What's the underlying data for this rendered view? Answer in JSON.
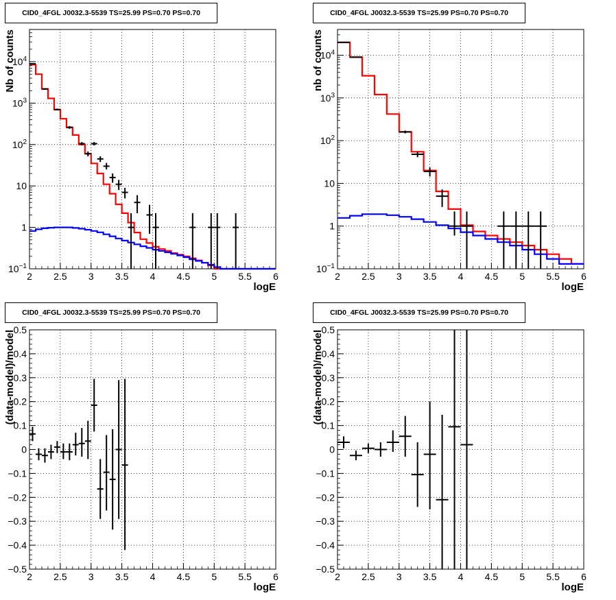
{
  "panels": [
    {
      "title": "CID0_4FGL J0032.3-5539 TS=25.99 PS=0.70 PS=0.70",
      "chart_data": {
        "type": "line",
        "xlabel": "logE",
        "ylabel": "Nb of counts",
        "xlim": [
          2,
          6
        ],
        "ylim": [
          0.1,
          60000
        ],
        "yscale": "log",
        "grid": true,
        "xticks": [
          "2",
          "2.5",
          "3",
          "3.5",
          "4",
          "4.5",
          "5",
          "5.5",
          "6"
        ],
        "yticks": [
          "10⁻¹",
          "1",
          "10",
          "10²",
          "10³",
          "10⁴"
        ],
        "series": [
          {
            "kind": "step",
            "color": "#ff0000",
            "edges": [
              2.0,
              2.1,
              2.2,
              2.3,
              2.4,
              2.5,
              2.6,
              2.7,
              2.8,
              2.9,
              3.0,
              3.1,
              3.2,
              3.3,
              3.4,
              3.5,
              3.6,
              3.7,
              3.8,
              3.9,
              4.0,
              4.1,
              4.2,
              4.3,
              4.4,
              4.5,
              4.6,
              4.7,
              4.8,
              4.9,
              5.0,
              5.1,
              5.2,
              5.3,
              5.4,
              5.5,
              5.6,
              5.7,
              5.8,
              5.9,
              6.0
            ],
            "values": [
              8500,
              5000,
              2200,
              1300,
              700,
              420,
              260,
              170,
              100,
              60,
              35,
              20,
              11,
              6.5,
              3.6,
              2.2,
              1.3,
              0.75,
              0.52,
              0.42,
              0.34,
              0.3,
              0.27,
              0.24,
              0.22,
              0.2,
              0.18,
              0.16,
              0.14,
              0.12,
              0.1,
              0.1,
              0.1,
              0.1,
              0.1,
              0.1,
              0.1,
              0.1,
              0.1,
              0.1
            ]
          },
          {
            "kind": "step",
            "color": "#0000ff",
            "edges": [
              2.0,
              2.1,
              2.2,
              2.3,
              2.4,
              2.5,
              2.6,
              2.7,
              2.8,
              2.9,
              3.0,
              3.1,
              3.2,
              3.3,
              3.4,
              3.5,
              3.6,
              3.7,
              3.8,
              3.9,
              4.0,
              4.1,
              4.2,
              4.3,
              4.4,
              4.5,
              4.6,
              4.7,
              4.8,
              4.9,
              5.0,
              5.1,
              5.2,
              5.3,
              5.4,
              5.5,
              5.6,
              5.7,
              5.8,
              5.9,
              6.0
            ],
            "values": [
              0.82,
              0.9,
              0.95,
              0.98,
              1.0,
              1.0,
              1.0,
              0.97,
              0.93,
              0.88,
              0.82,
              0.76,
              0.68,
              0.61,
              0.54,
              0.48,
              0.43,
              0.39,
              0.35,
              0.32,
              0.29,
              0.27,
              0.25,
              0.23,
              0.21,
              0.19,
              0.17,
              0.155,
              0.14,
              0.125,
              0.11,
              0.1,
              0.1,
              0.1,
              0.1,
              0.1,
              0.1,
              0.1,
              0.1,
              0.1
            ]
          }
        ],
        "points": [
          {
            "x": 2.05,
            "y": 8900,
            "dx": 0.05,
            "lo": 8700,
            "hi": 9100
          },
          {
            "x": 2.25,
            "y": 2200,
            "dx": 0.05,
            "lo": 2100,
            "hi": 2300
          },
          {
            "x": 2.45,
            "y": 700,
            "dx": 0.05,
            "lo": 670,
            "hi": 730
          },
          {
            "x": 2.65,
            "y": 260,
            "dx": 0.05,
            "lo": 240,
            "hi": 280
          },
          {
            "x": 2.85,
            "y": 105,
            "dx": 0.05,
            "lo": 95,
            "hi": 115
          },
          {
            "x": 2.95,
            "y": 60,
            "dx": 0.05,
            "lo": 52,
            "hi": 68
          },
          {
            "x": 3.05,
            "y": 105,
            "dx": 0.05,
            "lo": 95,
            "hi": 115
          },
          {
            "x": 3.15,
            "y": 45,
            "dx": 0.05,
            "lo": 38,
            "hi": 52
          },
          {
            "x": 3.25,
            "y": 30,
            "dx": 0.05,
            "lo": 25,
            "hi": 36
          },
          {
            "x": 3.35,
            "y": 16,
            "dx": 0.05,
            "lo": 12,
            "hi": 20
          },
          {
            "x": 3.45,
            "y": 11,
            "dx": 0.05,
            "lo": 8,
            "hi": 14
          },
          {
            "x": 3.55,
            "y": 7,
            "dx": 0.05,
            "lo": 5,
            "hi": 9
          },
          {
            "x": 3.65,
            "y": 1,
            "dx": 0.05,
            "lo": 0.1,
            "hi": 2.2
          },
          {
            "x": 3.75,
            "y": 4,
            "dx": 0.05,
            "lo": 2.2,
            "hi": 6
          },
          {
            "x": 3.95,
            "y": 2,
            "dx": 0.05,
            "lo": 0.7,
            "hi": 3.5
          },
          {
            "x": 4.05,
            "y": 1,
            "dx": 0.05,
            "lo": 0.1,
            "hi": 2.2
          },
          {
            "x": 4.65,
            "y": 1,
            "dx": 0.05,
            "lo": 0.1,
            "hi": 2.2
          },
          {
            "x": 4.95,
            "y": 1,
            "dx": 0.05,
            "lo": 0.1,
            "hi": 2.2
          },
          {
            "x": 5.05,
            "y": 1,
            "dx": 0.05,
            "lo": 0.1,
            "hi": 2.2
          },
          {
            "x": 5.35,
            "y": 1,
            "dx": 0.05,
            "lo": 0.1,
            "hi": 2.2
          }
        ]
      }
    },
    {
      "title": "CID0_4FGL J0032.3-5539 TS=25.99 PS=0.70 PS=0.70",
      "chart_data": {
        "type": "line",
        "xlabel": "logE",
        "ylabel": "nb of counts",
        "xlim": [
          2,
          6
        ],
        "ylim": [
          0.1,
          40000
        ],
        "yscale": "log",
        "grid": true,
        "xticks": [
          "2",
          "2.5",
          "3",
          "3.5",
          "4",
          "4.5",
          "5",
          "5.5",
          "6"
        ],
        "yticks": [
          "10⁻¹",
          "1",
          "10",
          "10²",
          "10³",
          "10⁴"
        ],
        "series": [
          {
            "kind": "step",
            "color": "#ff0000",
            "edges": [
              2.0,
              2.2,
              2.4,
              2.6,
              2.8,
              3.0,
              3.2,
              3.4,
              3.6,
              3.8,
              4.0,
              4.2,
              4.4,
              4.6,
              4.8,
              5.0,
              5.2,
              5.4,
              5.6,
              5.8,
              6.0
            ],
            "values": [
              20000,
              9000,
              3300,
              1200,
              420,
              160,
              55,
              20,
              6.5,
              2.5,
              1.05,
              0.75,
              0.6,
              0.5,
              0.42,
              0.35,
              0.28,
              0.22,
              0.17,
              0.13
            ]
          },
          {
            "kind": "step",
            "color": "#0000ff",
            "edges": [
              2.0,
              2.2,
              2.4,
              2.6,
              2.8,
              3.0,
              3.2,
              3.4,
              3.6,
              3.8,
              4.0,
              4.2,
              4.4,
              4.6,
              4.8,
              5.0,
              5.2,
              5.4,
              5.6,
              5.8,
              6.0
            ],
            "values": [
              1.55,
              1.75,
              1.9,
              1.9,
              1.8,
              1.65,
              1.45,
              1.25,
              1.05,
              0.88,
              0.72,
              0.6,
              0.5,
              0.42,
              0.35,
              0.28,
              0.22,
              0.17,
              0.13,
              0.13
            ]
          }
        ],
        "points": [
          {
            "x": 2.1,
            "y": 20000,
            "dx": 0.1,
            "lo": 19500,
            "hi": 20500
          },
          {
            "x": 2.3,
            "y": 9000,
            "dx": 0.1,
            "lo": 8800,
            "hi": 9200
          },
          {
            "x": 3.1,
            "y": 160,
            "dx": 0.1,
            "lo": 148,
            "hi": 172
          },
          {
            "x": 3.3,
            "y": 48,
            "dx": 0.1,
            "lo": 41,
            "hi": 55
          },
          {
            "x": 3.5,
            "y": 19,
            "dx": 0.1,
            "lo": 14.5,
            "hi": 23.5
          },
          {
            "x": 3.7,
            "y": 5,
            "dx": 0.1,
            "lo": 2.8,
            "hi": 7.2
          },
          {
            "x": 3.9,
            "y": 1,
            "dx": 0.1,
            "lo": 0.6,
            "hi": 2.2
          },
          {
            "x": 4.1,
            "y": 1,
            "dx": 0.1,
            "lo": 0.1,
            "hi": 2.2
          },
          {
            "x": 4.7,
            "y": 1,
            "dx": 0.1,
            "lo": 0.1,
            "hi": 2.2
          },
          {
            "x": 4.9,
            "y": 1,
            "dx": 0.1,
            "lo": 0.1,
            "hi": 2.2
          },
          {
            "x": 5.1,
            "y": 1,
            "dx": 0.1,
            "lo": 0.1,
            "hi": 2.2
          },
          {
            "x": 5.3,
            "y": 1,
            "dx": 0.1,
            "lo": 0.1,
            "hi": 2.2
          }
        ]
      }
    },
    {
      "title": "CID0_4FGL J0032.3-5539 TS=25.99 PS=0.70 PS=0.70",
      "chart_data": {
        "type": "scatter",
        "xlabel": "logE",
        "ylabel": "(data-model)/model",
        "xlim": [
          2,
          6
        ],
        "ylim": [
          -0.5,
          0.5
        ],
        "yscale": "linear",
        "grid": true,
        "xticks": [
          "2",
          "2.5",
          "3",
          "3.5",
          "4",
          "4.5",
          "5",
          "5.5",
          "6"
        ],
        "yticks": [
          "−0.5",
          "−0.4",
          "−0.3",
          "−0.2",
          "−0.1",
          "0",
          "0.1",
          "0.2",
          "0.3",
          "0.4",
          "0.5"
        ],
        "points": [
          {
            "x": 2.05,
            "y": 0.065,
            "dx": 0.05,
            "lo": 0.035,
            "hi": 0.095
          },
          {
            "x": 2.15,
            "y": -0.02,
            "dx": 0.05,
            "lo": -0.045,
            "hi": 0.005
          },
          {
            "x": 2.25,
            "y": -0.025,
            "dx": 0.05,
            "lo": -0.055,
            "hi": 0.005
          },
          {
            "x": 2.35,
            "y": -0.01,
            "dx": 0.05,
            "lo": -0.04,
            "hi": 0.02
          },
          {
            "x": 2.45,
            "y": 0.01,
            "dx": 0.05,
            "lo": -0.015,
            "hi": 0.035
          },
          {
            "x": 2.55,
            "y": -0.01,
            "dx": 0.05,
            "lo": -0.04,
            "hi": 0.025
          },
          {
            "x": 2.65,
            "y": -0.01,
            "dx": 0.05,
            "lo": -0.045,
            "hi": 0.025
          },
          {
            "x": 2.75,
            "y": 0.02,
            "dx": 0.05,
            "lo": -0.025,
            "hi": 0.07
          },
          {
            "x": 2.85,
            "y": 0.025,
            "dx": 0.05,
            "lo": -0.03,
            "hi": 0.09
          },
          {
            "x": 2.95,
            "y": 0.035,
            "dx": 0.05,
            "lo": -0.04,
            "hi": 0.12
          },
          {
            "x": 3.05,
            "y": 0.185,
            "dx": 0.05,
            "lo": 0.075,
            "hi": 0.295
          },
          {
            "x": 3.15,
            "y": -0.165,
            "dx": 0.05,
            "lo": -0.29,
            "hi": -0.04
          },
          {
            "x": 3.25,
            "y": -0.095,
            "dx": 0.05,
            "lo": -0.255,
            "hi": 0.06
          },
          {
            "x": 3.35,
            "y": -0.125,
            "dx": 0.05,
            "lo": -0.335,
            "hi": 0.085
          },
          {
            "x": 3.45,
            "y": 0.0,
            "dx": 0.05,
            "lo": -0.29,
            "hi": 0.29
          },
          {
            "x": 3.55,
            "y": -0.065,
            "dx": 0.05,
            "lo": -0.42,
            "hi": 0.295
          }
        ]
      }
    },
    {
      "title": "CID0_4FGL J0032.3-5539 TS=25.99 PS=0.70 PS=0.70",
      "chart_data": {
        "type": "scatter",
        "xlabel": "logE",
        "ylabel": "(data-model)/model",
        "xlim": [
          2,
          6
        ],
        "ylim": [
          -0.5,
          0.5
        ],
        "yscale": "linear",
        "grid": true,
        "xticks": [
          "2",
          "2.5",
          "3",
          "3.5",
          "4",
          "4.5",
          "5",
          "5.5",
          "6"
        ],
        "yticks": [
          "−0.5",
          "−0.4",
          "−0.3",
          "−0.2",
          "−0.1",
          "0",
          "0.1",
          "0.2",
          "0.3",
          "0.4",
          "0.5"
        ],
        "points": [
          {
            "x": 2.1,
            "y": 0.03,
            "dx": 0.1,
            "lo": 0.005,
            "hi": 0.055
          },
          {
            "x": 2.3,
            "y": -0.025,
            "dx": 0.1,
            "lo": -0.045,
            "hi": -0.005
          },
          {
            "x": 2.5,
            "y": 0.005,
            "dx": 0.1,
            "lo": -0.015,
            "hi": 0.025
          },
          {
            "x": 2.7,
            "y": 0.0,
            "dx": 0.1,
            "lo": -0.03,
            "hi": 0.03
          },
          {
            "x": 2.9,
            "y": 0.03,
            "dx": 0.1,
            "lo": -0.01,
            "hi": 0.08
          },
          {
            "x": 3.1,
            "y": 0.055,
            "dx": 0.1,
            "lo": -0.03,
            "hi": 0.14
          },
          {
            "x": 3.3,
            "y": -0.105,
            "dx": 0.1,
            "lo": -0.24,
            "hi": 0.03
          },
          {
            "x": 3.5,
            "y": -0.02,
            "dx": 0.1,
            "lo": -0.25,
            "hi": 0.2
          },
          {
            "x": 3.7,
            "y": -0.21,
            "dx": 0.1,
            "lo": -0.5,
            "hi": 0.145
          },
          {
            "x": 3.9,
            "y": 0.095,
            "dx": 0.1,
            "lo": -0.5,
            "hi": 0.5
          },
          {
            "x": 4.1,
            "y": 0.02,
            "dx": 0.1,
            "lo": -0.5,
            "hi": 0.5
          }
        ]
      }
    }
  ]
}
